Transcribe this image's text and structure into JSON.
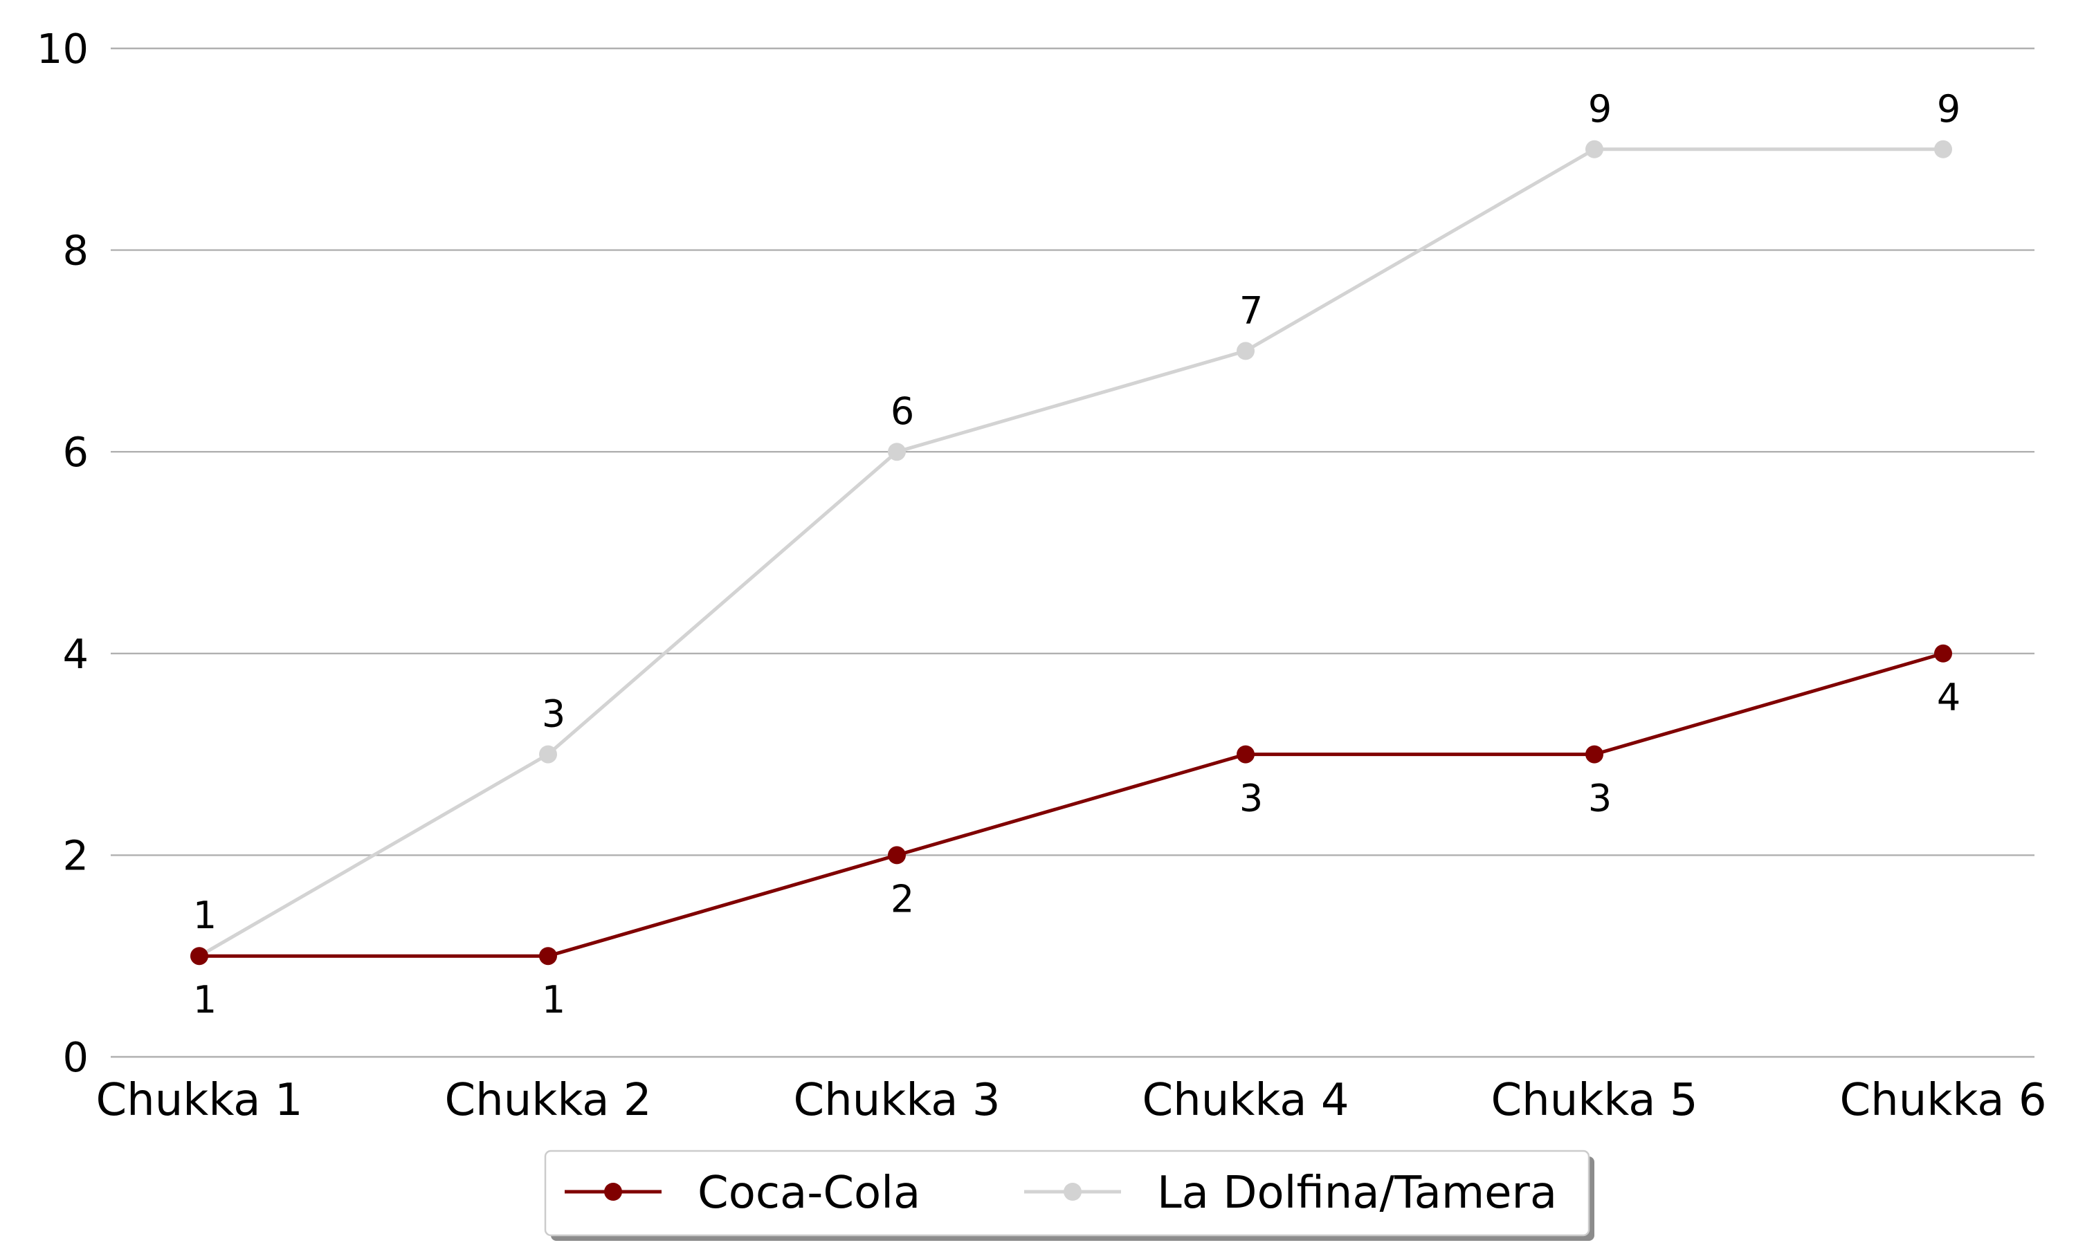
{
  "chart_data": {
    "type": "line",
    "title": "",
    "xlabel": "",
    "ylabel": "",
    "categories": [
      "Chukka 1",
      "Chukka 2",
      "Chukka 3",
      "Chukka 4",
      "Chukka 5",
      "Chukka 6"
    ],
    "ylim": [
      0,
      10
    ],
    "yticks": [
      0,
      2,
      4,
      6,
      8,
      10
    ],
    "grid": "horizontal",
    "legend_position": "bottom-center",
    "series": [
      {
        "name": "Coca-Cola",
        "color": "#800000",
        "values": [
          1,
          1,
          2,
          3,
          3,
          4
        ],
        "label_position": "below"
      },
      {
        "name": "La Dolfina/Tamera",
        "color": "#d3d3d3",
        "values": [
          1,
          3,
          6,
          7,
          9,
          9
        ],
        "label_position": "above"
      }
    ]
  }
}
